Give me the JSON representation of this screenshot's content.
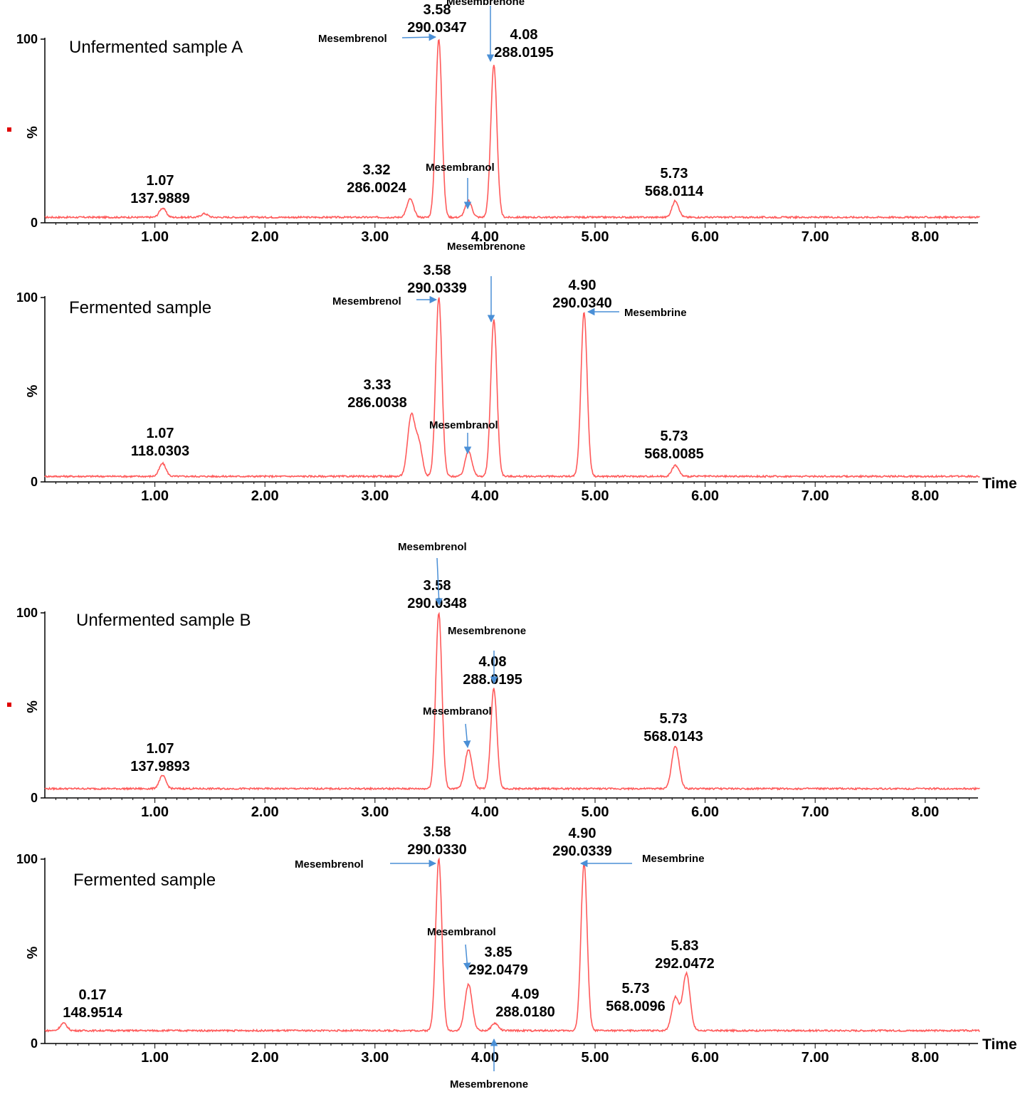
{
  "chart_data": [
    {
      "type": "line",
      "title": "Unfermented sample A",
      "xlabel": "",
      "ylabel": "%",
      "xlim": [
        0,
        8.5
      ],
      "ylim": [
        0,
        100
      ],
      "y_ticks": [
        "0",
        "100"
      ],
      "x_ticks": [
        "1.00",
        "2.00",
        "3.00",
        "4.00",
        "5.00",
        "6.00",
        "7.00",
        "8.00"
      ],
      "line_color": "#ff5a5a",
      "baseline": 3,
      "peaks": [
        {
          "x": 1.07,
          "y": 8,
          "label_time": "1.07",
          "label_mass": "137.9889"
        },
        {
          "x": 1.45,
          "y": 5
        },
        {
          "x": 3.32,
          "y": 13,
          "label_time": "3.32",
          "label_mass": "286.0024"
        },
        {
          "x": 3.58,
          "y": 100,
          "label_time": "3.58",
          "label_mass": "290.0347"
        },
        {
          "x": 3.85,
          "y": 12
        },
        {
          "x": 4.08,
          "y": 86,
          "label_time": "4.08",
          "label_mass": "288.0195"
        },
        {
          "x": 5.73,
          "y": 12,
          "label_time": "5.73",
          "label_mass": "568.0114"
        }
      ],
      "annotations": [
        {
          "text": "Mesembrenol",
          "x": 3.58
        },
        {
          "text": "Mesembrenone",
          "x": 4.08
        },
        {
          "text": "Mesembranol",
          "x": 3.85
        }
      ]
    },
    {
      "type": "line",
      "title": "Fermented sample",
      "xlabel": "Time",
      "ylabel": "%",
      "xlim": [
        0,
        8.5
      ],
      "ylim": [
        0,
        100
      ],
      "y_ticks": [
        "0",
        "100"
      ],
      "x_ticks": [
        "1.00",
        "2.00",
        "3.00",
        "4.00",
        "5.00",
        "6.00",
        "7.00",
        "8.00"
      ],
      "line_color": "#ff5a5a",
      "baseline": 3,
      "peaks": [
        {
          "x": 1.07,
          "y": 10,
          "label_time": "1.07",
          "label_mass": "118.0303"
        },
        {
          "x": 3.33,
          "y": 36,
          "label_time": "3.33",
          "label_mass": "286.0038"
        },
        {
          "x": 3.4,
          "y": 20
        },
        {
          "x": 3.58,
          "y": 100,
          "label_time": "3.58",
          "label_mass": "290.0339"
        },
        {
          "x": 3.85,
          "y": 17
        },
        {
          "x": 4.08,
          "y": 88
        },
        {
          "x": 4.9,
          "y": 92,
          "label_time": "4.90",
          "label_mass": "290.0340"
        },
        {
          "x": 5.73,
          "y": 9,
          "label_time": "5.73",
          "label_mass": "568.0085"
        }
      ],
      "annotations": [
        {
          "text": "Mesembrenone",
          "x": 4.08
        },
        {
          "text": "Mesembrenol",
          "x": 3.58
        },
        {
          "text": "Mesembrine",
          "x": 4.9
        },
        {
          "text": "Mesembranol",
          "x": 3.85
        }
      ]
    },
    {
      "type": "line",
      "title": "Unfermented sample B",
      "xlabel": "",
      "ylabel": "%",
      "xlim": [
        0,
        8.5
      ],
      "ylim": [
        0,
        100
      ],
      "y_ticks": [
        "0",
        "100"
      ],
      "x_ticks": [
        "1.00",
        "2.00",
        "3.00",
        "4.00",
        "5.00",
        "6.00",
        "7.00",
        "8.00"
      ],
      "line_color": "#ff5a5a",
      "baseline": 5,
      "peaks": [
        {
          "x": 1.07,
          "y": 12,
          "label_time": "1.07",
          "label_mass": "137.9893"
        },
        {
          "x": 3.58,
          "y": 100,
          "label_time": "3.58",
          "label_mass": "290.0348"
        },
        {
          "x": 3.85,
          "y": 26
        },
        {
          "x": 4.08,
          "y": 59,
          "label_time": "4.08",
          "label_mass": "288.0195"
        },
        {
          "x": 5.73,
          "y": 28,
          "label_time": "5.73",
          "label_mass": "568.0143"
        }
      ],
      "annotations": [
        {
          "text": "Mesembrenol",
          "x": 3.58
        },
        {
          "text": "Mesembrenone",
          "x": 4.08
        },
        {
          "text": "Mesembranol",
          "x": 3.85
        }
      ]
    },
    {
      "type": "line",
      "title": "Fermented sample",
      "xlabel": "Time",
      "ylabel": "%",
      "xlim": [
        0,
        8.5
      ],
      "ylim": [
        0,
        100
      ],
      "y_ticks": [
        "0",
        "100"
      ],
      "x_ticks": [
        "1.00",
        "2.00",
        "3.00",
        "4.00",
        "5.00",
        "6.00",
        "7.00",
        "8.00"
      ],
      "line_color": "#ff5a5a",
      "baseline": 7,
      "peaks": [
        {
          "x": 0.17,
          "y": 11,
          "label_time": "0.17",
          "label_mass": "148.9514"
        },
        {
          "x": 3.58,
          "y": 100,
          "label_time": "3.58",
          "label_mass": "290.0330"
        },
        {
          "x": 3.85,
          "y": 32,
          "label_time": "3.85",
          "label_mass": "292.0479"
        },
        {
          "x": 4.09,
          "y": 11,
          "label_time": "4.09",
          "label_mass": "288.0180"
        },
        {
          "x": 4.9,
          "y": 98,
          "label_time": "4.90",
          "label_mass": "290.0339"
        },
        {
          "x": 5.73,
          "y": 25,
          "label_time": "5.73",
          "label_mass": "568.0096"
        },
        {
          "x": 5.83,
          "y": 38,
          "label_time": "5.83",
          "label_mass": "292.0472"
        }
      ],
      "annotations": [
        {
          "text": "Mesembrenol",
          "x": 3.58
        },
        {
          "text": "Mesembrine",
          "x": 4.9
        },
        {
          "text": "Mesembranol",
          "x": 3.85
        },
        {
          "text": "Mesembrenone",
          "x": 4.09
        }
      ]
    }
  ]
}
